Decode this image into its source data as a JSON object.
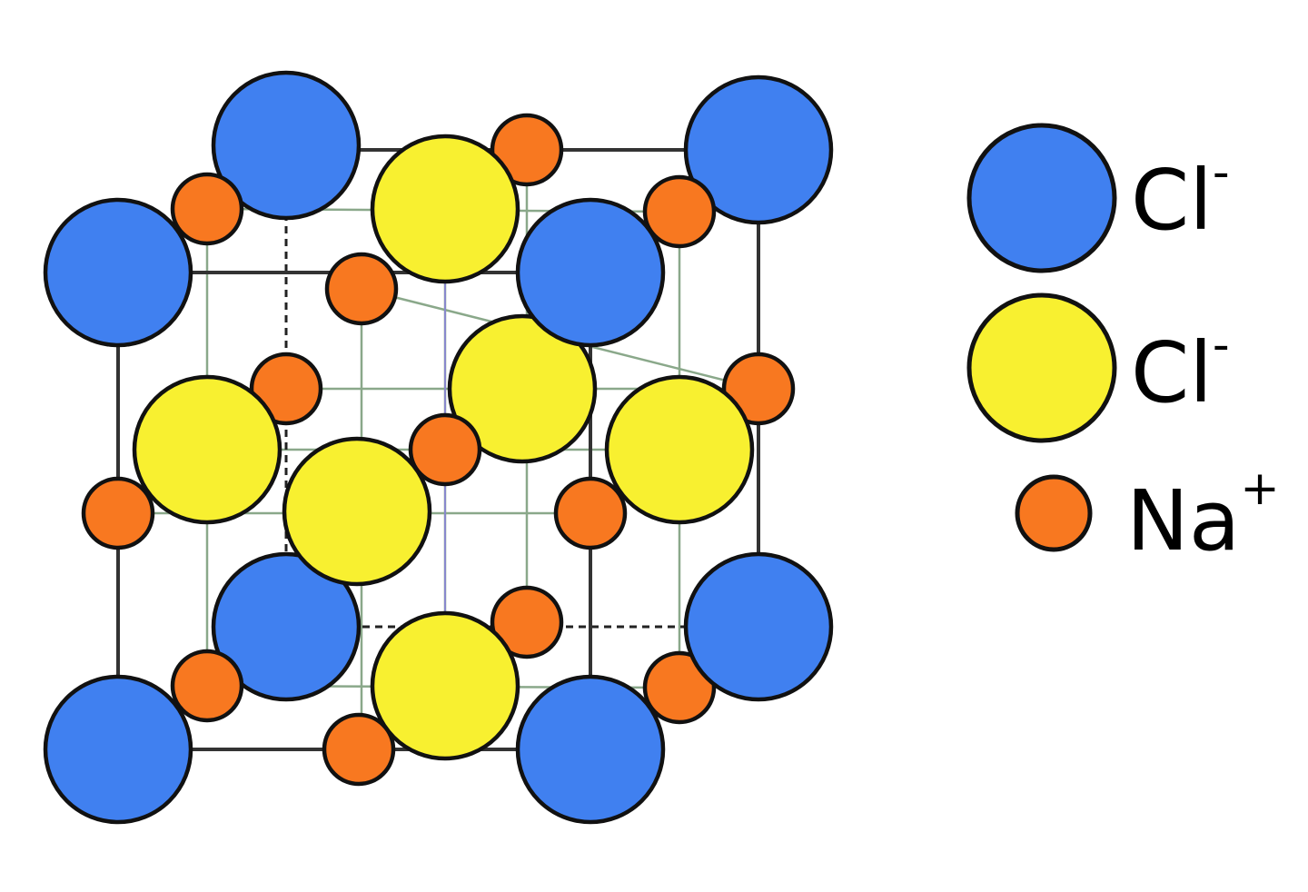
{
  "colors": {
    "cl_blue": "#4080f0",
    "cl_yellow": "#f8f030",
    "na_orange": "#f87820",
    "outline": "#111111"
  },
  "legend": [
    {
      "symbol": "Cl",
      "charge": "-",
      "color": "#4080f0"
    },
    {
      "symbol": "Cl",
      "charge": "-",
      "color": "#f8f030"
    },
    {
      "symbol": "Na",
      "charge": "+",
      "color": "#f87820"
    }
  ]
}
